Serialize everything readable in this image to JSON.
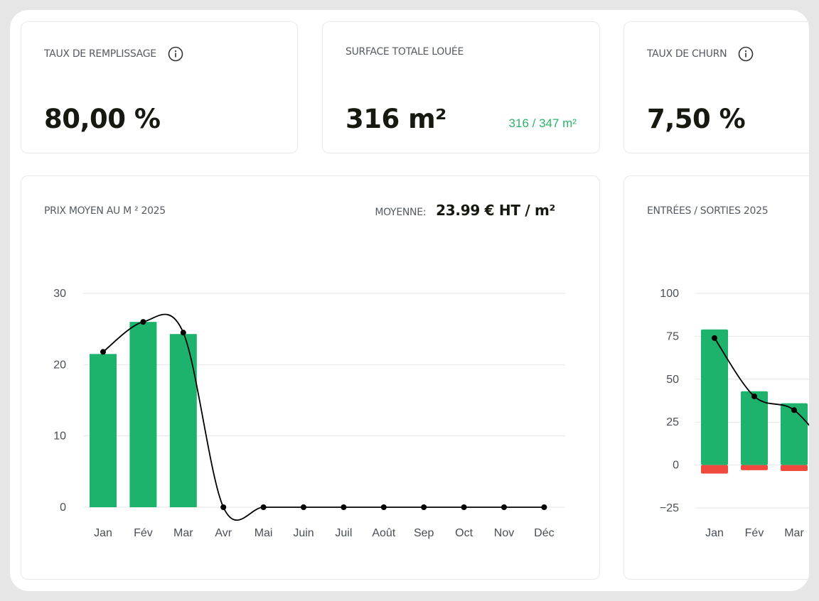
{
  "kpis": {
    "fill_rate": {
      "label": "TAUX DE REMPLISSAGE",
      "value": "80,00 %",
      "icon": "info-icon"
    },
    "total_area": {
      "label": "SURFACE TOTALE LOUÉE",
      "value": "316 m²",
      "sub": "316 / 347 m²"
    },
    "churn": {
      "label": "TAUX DE CHURN",
      "value": "7,50 %",
      "icon": "info-icon"
    }
  },
  "price_card": {
    "title": "PRIX MOYEN AU M ² 2025",
    "avg_label": "MOYENNE:",
    "avg_value": "23.99 € HT / m²"
  },
  "flow_card": {
    "title": "ENTRÉES / SORTIES 2025"
  },
  "colors": {
    "green": "#1db36c",
    "red": "#f0493d",
    "line": "#000000",
    "grid": "#e6e6ea"
  },
  "chart_data": [
    {
      "type": "bar",
      "title": "PRIX MOYEN AU M ² 2025",
      "categories": [
        "Jan",
        "Fév",
        "Mar",
        "Avr",
        "Mai",
        "Juin",
        "Juil",
        "Août",
        "Sep",
        "Oct",
        "Nov",
        "Déc"
      ],
      "values": [
        21.5,
        26,
        24.3,
        0,
        0,
        0,
        0,
        0,
        0,
        0,
        0,
        0
      ],
      "line_values": [
        21.8,
        26,
        24.5,
        0,
        0,
        0,
        0,
        0,
        0,
        0,
        0,
        0
      ],
      "yticks": [
        "0",
        "10",
        "20",
        "30"
      ],
      "ylim": [
        0,
        30
      ],
      "grid": true
    },
    {
      "type": "bar",
      "title": "ENTRÉES / SORTIES 2025",
      "categories": [
        "Jan",
        "Fév",
        "Mar"
      ],
      "series": [
        {
          "values": [
            79,
            43,
            36
          ]
        },
        {
          "values": [
            -5,
            -3,
            -3.5
          ]
        }
      ],
      "line_values": [
        74,
        40,
        32
      ],
      "yticks": [
        "−25",
        "0",
        "25",
        "50",
        "75",
        "100"
      ],
      "ylim": [
        -25,
        100
      ],
      "grid": true
    }
  ]
}
